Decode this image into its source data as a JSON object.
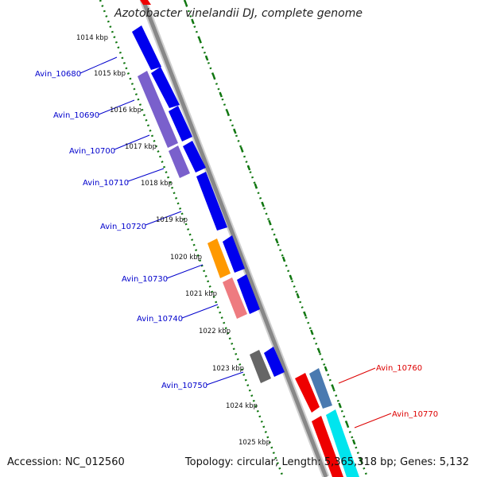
{
  "title": "Azotobacter vinelandii DJ, complete genome",
  "footer": {
    "accession": "Accession: NC_012560",
    "summary": "Topology: circular; Length: 5,365,318 bp; Genes: 5,132"
  },
  "ticks": [
    "1014 kbp",
    "1015 kbp",
    "1016 kbp",
    "1017 kbp",
    "1018 kbp",
    "1019 kbp",
    "1020 kbp",
    "1021 kbp",
    "1022 kbp",
    "1023 kbp",
    "1024 kbp",
    "1025 kbp"
  ],
  "gene_labels": [
    {
      "text": "Avin_10680",
      "color": "#0000cc"
    },
    {
      "text": "Avin_10690",
      "color": "#0000cc"
    },
    {
      "text": "Avin_10700",
      "color": "#0000cc"
    },
    {
      "text": "Avin_10710",
      "color": "#0000cc"
    },
    {
      "text": "Avin_10720",
      "color": "#0000cc"
    },
    {
      "text": "Avin_10730",
      "color": "#0000cc"
    },
    {
      "text": "Avin_10740",
      "color": "#0000cc"
    },
    {
      "text": "Avin_10750",
      "color": "#0000cc"
    },
    {
      "text": "Avin_10760",
      "color": "#dd0000"
    },
    {
      "text": "Avin_10770",
      "color": "#dd0000"
    }
  ],
  "colors": {
    "forward_cds": "#0000ee",
    "reverse_cds": "#7a60cc",
    "orange_feature": "#ff9900",
    "pink_feature": "#ee7b80",
    "gray_feature": "#666666",
    "red_feature": "#ee0000",
    "steel_feature": "#4a7ab0",
    "cyan_feature": "#00e5ee",
    "backbone": "#888888",
    "dots": "#117711"
  }
}
